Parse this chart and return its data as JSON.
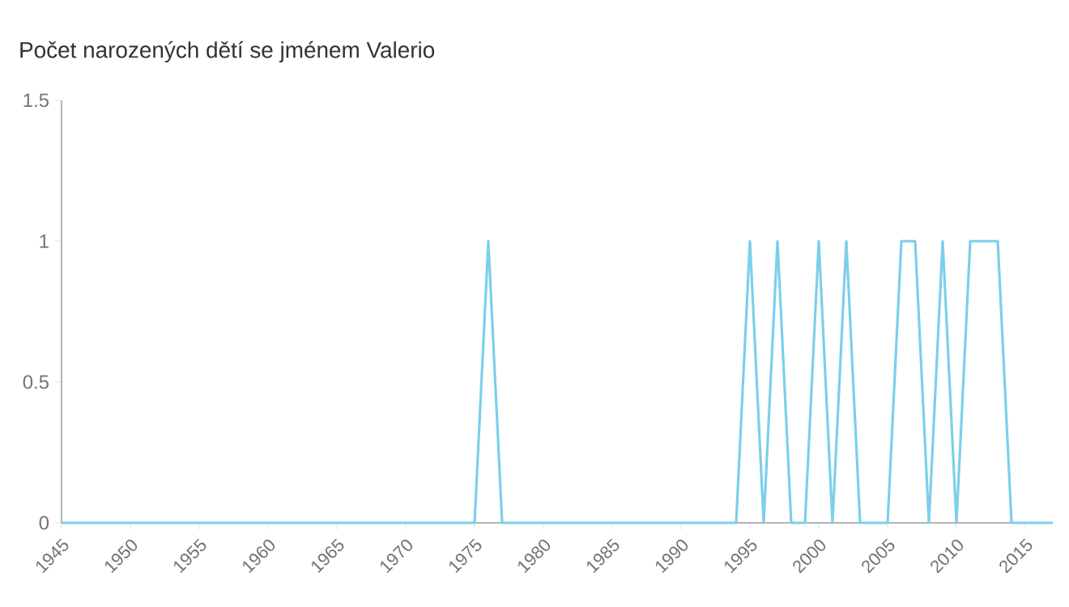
{
  "chart_data": {
    "type": "line",
    "title": "Počet narozených dětí se jménem Valerio",
    "x": [
      1945,
      1946,
      1947,
      1948,
      1949,
      1950,
      1951,
      1952,
      1953,
      1954,
      1955,
      1956,
      1957,
      1958,
      1959,
      1960,
      1961,
      1962,
      1963,
      1964,
      1965,
      1966,
      1967,
      1968,
      1969,
      1970,
      1971,
      1972,
      1973,
      1974,
      1975,
      1976,
      1977,
      1978,
      1979,
      1980,
      1981,
      1982,
      1983,
      1984,
      1985,
      1986,
      1987,
      1988,
      1989,
      1990,
      1991,
      1992,
      1993,
      1994,
      1995,
      1996,
      1997,
      1998,
      1999,
      2000,
      2001,
      2002,
      2003,
      2004,
      2005,
      2006,
      2007,
      2008,
      2009,
      2010,
      2011,
      2012,
      2013,
      2014,
      2015,
      2016,
      2017
    ],
    "values": [
      0,
      0,
      0,
      0,
      0,
      0,
      0,
      0,
      0,
      0,
      0,
      0,
      0,
      0,
      0,
      0,
      0,
      0,
      0,
      0,
      0,
      0,
      0,
      0,
      0,
      0,
      0,
      0,
      0,
      0,
      0,
      1,
      0,
      0,
      0,
      0,
      0,
      0,
      0,
      0,
      0,
      0,
      0,
      0,
      0,
      0,
      0,
      0,
      0,
      0,
      1,
      0,
      1,
      0,
      0,
      1,
      0,
      1,
      0,
      0,
      0,
      1,
      1,
      0,
      1,
      0,
      1,
      1,
      1,
      0,
      0,
      0,
      0
    ],
    "color": "#7ccfea",
    "xlim": [
      1945,
      2017
    ],
    "xticks": [
      1945,
      1950,
      1955,
      1960,
      1965,
      1970,
      1975,
      1980,
      1985,
      1990,
      1995,
      2000,
      2005,
      2010,
      2015
    ],
    "ylim": [
      0,
      1.5
    ],
    "yticks": [
      0,
      0.5,
      1,
      1.5
    ],
    "grid": false,
    "marker": "none",
    "line_style": "solid"
  }
}
